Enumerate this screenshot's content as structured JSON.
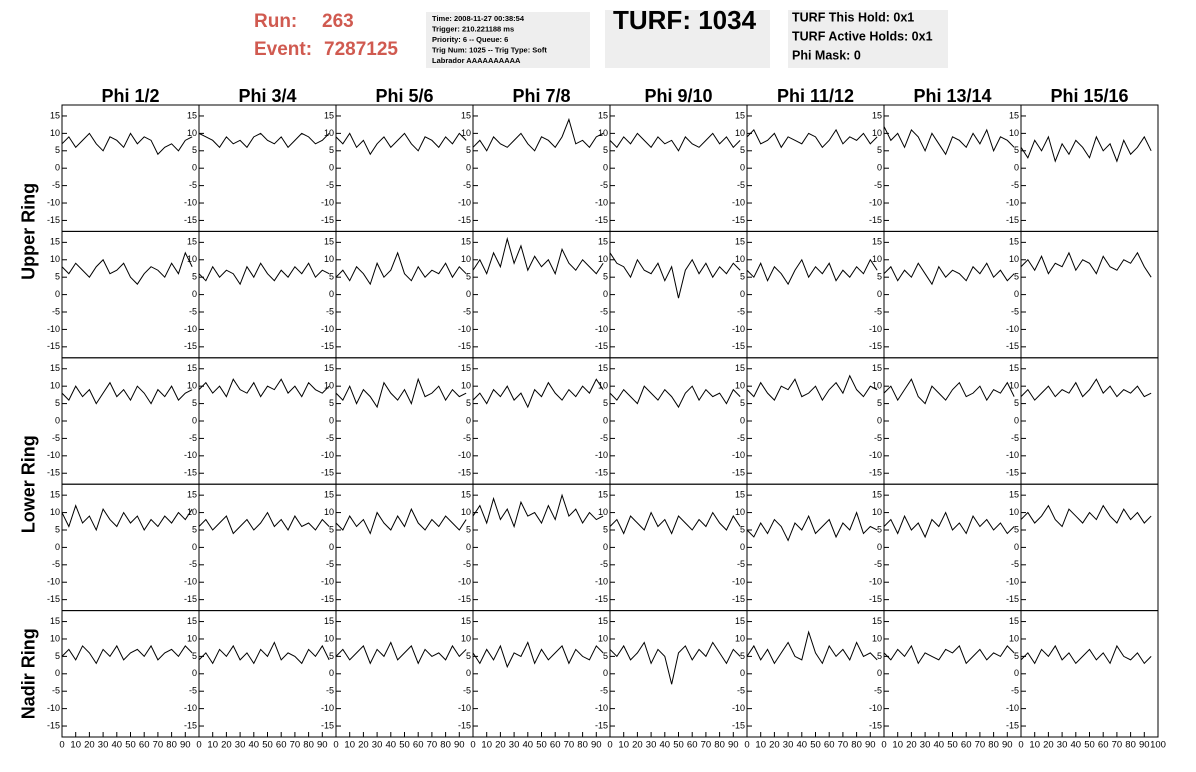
{
  "header": {
    "run_label": "Run:",
    "run": "263",
    "event_label": "Event:",
    "event": "7287125",
    "info": [
      "Time: 2008-11-27 00:38:54",
      "Trigger: 210.221188 ms",
      "Priority: 6 -- Queue: 6",
      "Trig Num: 1025 -- Trig Type: Soft",
      "Labrador AAAAAAAAAA"
    ],
    "turf": "TURF: 1034",
    "status": [
      "TURF This Hold: 0x1",
      "TURF Active Holds: 0x1",
      "Phi Mask: 0"
    ]
  },
  "chart_data": {
    "type": "panel-grid",
    "columns": [
      "Phi 1/2",
      "Phi 3/4",
      "Phi 5/6",
      "Phi 7/8",
      "Phi 9/10",
      "Phi 11/12",
      "Phi 13/14",
      "Phi 15/16"
    ],
    "row_groups": [
      {
        "label": "Upper Ring",
        "rows": 2
      },
      {
        "label": "Lower Ring",
        "rows": 2
      },
      {
        "label": "Nadir Ring",
        "rows": 1
      }
    ],
    "color": "#000000",
    "xlim": [
      0,
      100
    ],
    "xticks": [
      0,
      10,
      20,
      30,
      40,
      50,
      60,
      70,
      80,
      90,
      100
    ],
    "ylim": [
      -17,
      17
    ],
    "yticks": [
      -15,
      -10,
      -5,
      0,
      5,
      10,
      15
    ],
    "x": [
      0,
      5,
      10,
      15,
      20,
      25,
      30,
      35,
      40,
      45,
      50,
      55,
      60,
      65,
      70,
      75,
      80,
      85,
      90,
      95
    ],
    "panels": [
      [
        [
          7,
          9,
          6,
          8,
          10,
          7,
          5,
          9,
          8,
          6,
          10,
          7,
          9,
          8,
          4,
          6,
          7,
          5,
          8,
          9
        ],
        [
          10,
          9,
          8,
          6,
          9,
          7,
          8,
          6,
          9,
          10,
          8,
          7,
          9,
          6,
          8,
          10,
          9,
          7,
          8,
          10
        ],
        [
          9,
          7,
          10,
          6,
          8,
          4,
          7,
          9,
          6,
          8,
          10,
          7,
          5,
          9,
          8,
          6,
          9,
          7,
          10,
          8
        ],
        [
          6,
          8,
          5,
          9,
          7,
          6,
          8,
          10,
          7,
          5,
          9,
          8,
          6,
          9,
          14,
          7,
          8,
          6,
          9,
          10
        ],
        [
          8,
          6,
          9,
          7,
          10,
          8,
          6,
          9,
          7,
          8,
          5,
          9,
          7,
          6,
          8,
          10,
          7,
          9,
          6,
          8
        ],
        [
          9,
          11,
          7,
          8,
          10,
          6,
          9,
          8,
          7,
          10,
          9,
          6,
          8,
          11,
          7,
          9,
          8,
          10,
          7,
          9
        ],
        [
          12,
          8,
          10,
          6,
          11,
          9,
          5,
          10,
          7,
          4,
          9,
          8,
          6,
          10,
          7,
          11,
          5,
          9,
          8,
          6
        ],
        [
          6,
          3,
          8,
          5,
          9,
          2,
          7,
          4,
          8,
          6,
          3,
          9,
          5,
          7,
          2,
          8,
          4,
          6,
          9,
          5
        ]
      ],
      [
        [
          8,
          6,
          9,
          7,
          5,
          8,
          10,
          6,
          7,
          9,
          5,
          3,
          6,
          8,
          7,
          5,
          9,
          6,
          12,
          8
        ],
        [
          6,
          4,
          8,
          5,
          7,
          6,
          3,
          8,
          5,
          9,
          6,
          4,
          7,
          5,
          8,
          6,
          9,
          5,
          7,
          6
        ],
        [
          5,
          7,
          4,
          8,
          6,
          3,
          9,
          5,
          7,
          12,
          6,
          4,
          8,
          5,
          7,
          6,
          9,
          5,
          8,
          6
        ],
        [
          7,
          10,
          6,
          12,
          8,
          16,
          9,
          14,
          7,
          11,
          8,
          10,
          6,
          13,
          9,
          7,
          10,
          8,
          6,
          9
        ],
        [
          12,
          9,
          8,
          5,
          10,
          7,
          6,
          9,
          4,
          8,
          -1,
          7,
          10,
          6,
          9,
          5,
          8,
          6,
          9,
          7
        ],
        [
          7,
          5,
          9,
          4,
          8,
          6,
          3,
          7,
          10,
          5,
          8,
          6,
          9,
          4,
          7,
          5,
          8,
          6,
          10,
          7
        ],
        [
          6,
          8,
          4,
          7,
          5,
          9,
          6,
          3,
          8,
          5,
          7,
          6,
          4,
          8,
          6,
          9,
          5,
          7,
          4,
          6
        ],
        [
          8,
          10,
          7,
          11,
          6,
          9,
          8,
          12,
          7,
          10,
          9,
          6,
          11,
          8,
          7,
          10,
          9,
          12,
          8,
          5
        ]
      ],
      [
        [
          8,
          6,
          10,
          7,
          9,
          5,
          8,
          11,
          7,
          9,
          6,
          10,
          8,
          5,
          9,
          7,
          10,
          6,
          8,
          9
        ],
        [
          9,
          11,
          8,
          10,
          7,
          12,
          9,
          8,
          11,
          7,
          10,
          9,
          12,
          8,
          10,
          7,
          11,
          9,
          8,
          10
        ],
        [
          8,
          6,
          10,
          5,
          9,
          7,
          4,
          11,
          8,
          6,
          9,
          5,
          12,
          7,
          8,
          10,
          6,
          9,
          7,
          8
        ],
        [
          6,
          8,
          5,
          9,
          7,
          10,
          6,
          8,
          4,
          9,
          7,
          11,
          8,
          6,
          9,
          7,
          10,
          8,
          12,
          9
        ],
        [
          8,
          6,
          9,
          7,
          5,
          10,
          8,
          6,
          9,
          7,
          4,
          8,
          10,
          6,
          9,
          7,
          8,
          5,
          9,
          7
        ],
        [
          9,
          7,
          11,
          8,
          6,
          10,
          9,
          12,
          7,
          8,
          10,
          6,
          9,
          11,
          8,
          13,
          9,
          7,
          10,
          9
        ],
        [
          8,
          10,
          6,
          9,
          12,
          7,
          5,
          10,
          8,
          6,
          9,
          11,
          7,
          8,
          10,
          6,
          9,
          8,
          11,
          7
        ],
        [
          7,
          9,
          6,
          8,
          10,
          7,
          9,
          8,
          11,
          7,
          9,
          12,
          8,
          10,
          7,
          9,
          8,
          10,
          7,
          8
        ]
      ],
      [
        [
          10,
          6,
          12,
          7,
          9,
          5,
          11,
          8,
          6,
          10,
          7,
          9,
          5,
          8,
          6,
          9,
          7,
          10,
          8,
          11
        ],
        [
          6,
          8,
          5,
          7,
          9,
          4,
          6,
          8,
          5,
          7,
          10,
          6,
          8,
          5,
          9,
          6,
          7,
          5,
          8,
          6
        ],
        [
          7,
          5,
          9,
          6,
          8,
          4,
          10,
          7,
          5,
          9,
          6,
          11,
          7,
          5,
          8,
          6,
          9,
          7,
          5,
          8
        ],
        [
          9,
          12,
          7,
          14,
          8,
          11,
          6,
          13,
          9,
          10,
          7,
          12,
          8,
          15,
          9,
          11,
          7,
          10,
          8,
          9
        ],
        [
          6,
          8,
          4,
          9,
          7,
          5,
          10,
          6,
          8,
          4,
          9,
          7,
          5,
          8,
          6,
          10,
          7,
          5,
          9,
          6
        ],
        [
          5,
          3,
          7,
          4,
          8,
          6,
          2,
          7,
          5,
          9,
          4,
          6,
          8,
          3,
          7,
          5,
          10,
          4,
          6,
          5
        ],
        [
          6,
          8,
          4,
          9,
          5,
          7,
          3,
          8,
          6,
          10,
          5,
          7,
          4,
          9,
          6,
          8,
          5,
          7,
          4,
          6
        ],
        [
          8,
          10,
          7,
          9,
          12,
          8,
          6,
          11,
          9,
          7,
          10,
          8,
          12,
          9,
          7,
          11,
          8,
          10,
          7,
          9
        ]
      ],
      [
        [
          5,
          7,
          4,
          8,
          6,
          3,
          7,
          5,
          8,
          4,
          6,
          7,
          5,
          8,
          4,
          6,
          7,
          5,
          8,
          6
        ],
        [
          4,
          6,
          3,
          7,
          5,
          8,
          4,
          6,
          3,
          7,
          5,
          9,
          4,
          6,
          5,
          3,
          7,
          5,
          8,
          4
        ],
        [
          5,
          7,
          4,
          6,
          8,
          3,
          7,
          5,
          9,
          4,
          6,
          8,
          3,
          7,
          5,
          6,
          4,
          8,
          5,
          7
        ],
        [
          6,
          3,
          7,
          4,
          8,
          2,
          6,
          5,
          9,
          3,
          7,
          4,
          6,
          8,
          3,
          7,
          5,
          4,
          8,
          6
        ],
        [
          7,
          5,
          8,
          4,
          6,
          9,
          3,
          7,
          5,
          -3,
          6,
          8,
          4,
          7,
          5,
          9,
          6,
          3,
          7,
          5
        ],
        [
          5,
          8,
          4,
          7,
          3,
          6,
          9,
          5,
          4,
          12,
          6,
          3,
          8,
          5,
          7,
          4,
          9,
          5,
          6,
          4
        ],
        [
          6,
          4,
          7,
          5,
          8,
          3,
          6,
          5,
          4,
          7,
          6,
          8,
          3,
          5,
          7,
          4,
          6,
          5,
          8,
          6
        ],
        [
          4,
          6,
          3,
          7,
          5,
          8,
          4,
          6,
          3,
          5,
          7,
          4,
          6,
          3,
          8,
          5,
          4,
          6,
          3,
          5
        ]
      ]
    ]
  }
}
